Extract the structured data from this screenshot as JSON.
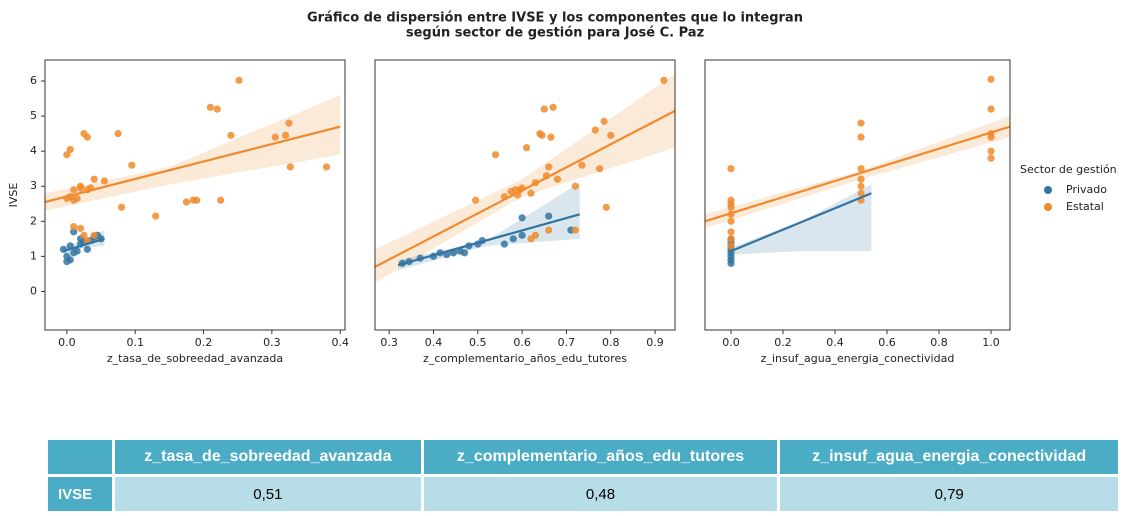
{
  "title": [
    "Gráfico de dispersión entre IVSE y los componentes que lo integran",
    "según sector de gestión para José C. Paz"
  ],
  "legend_title": "Sector de gestión",
  "chart_data": [
    {
      "type": "scatter",
      "x_label": "z_tasa_de_sobreedad_avanzada",
      "y_label": "IVSE",
      "xlim": [
        -0.032,
        0.407
      ],
      "xticks": [
        {
          "value": 0,
          "label": "0.0"
        },
        0.1,
        0.2,
        0.3,
        0.4
      ],
      "ylim": [
        -1.1,
        6.6
      ],
      "yticks": [
        0,
        1,
        2,
        3,
        4,
        5,
        6
      ],
      "series": [
        {
          "name": "Privado",
          "color": "#3274a1",
          "x": [
            -0.005,
            0.0,
            0.0,
            0.005,
            0.005,
            0.01,
            0.01,
            0.015,
            0.02,
            0.02,
            0.025,
            0.03,
            0.035,
            0.04,
            0.045,
            0.05
          ],
          "values": [
            1.2,
            1.0,
            0.85,
            0.9,
            1.3,
            1.1,
            1.7,
            1.15,
            1.35,
            1.5,
            1.4,
            1.2,
            1.45,
            1.55,
            1.6,
            1.5
          ],
          "fit": {
            "x": [
              -0.005,
              0.055
            ],
            "y": [
              1.15,
              1.5
            ]
          },
          "ci": {
            "x": [
              -0.005,
              0.025,
              0.055
            ],
            "lower": [
              1.05,
              1.25,
              1.3
            ],
            "upper": [
              1.25,
              1.45,
              1.75
            ]
          }
        },
        {
          "name": "Estatal",
          "color": "#f08a2c",
          "x": [
            0.0,
            0.0,
            0.005,
            0.005,
            0.01,
            0.01,
            0.015,
            0.02,
            0.02,
            0.025,
            0.03,
            0.03,
            0.035,
            0.04,
            0.01,
            0.02,
            0.025,
            0.03,
            0.04,
            0.055,
            0.075,
            0.08,
            0.095,
            0.13,
            0.175,
            0.185,
            0.19,
            0.21,
            0.22,
            0.225,
            0.24,
            0.252,
            0.305,
            0.32,
            0.325,
            0.327,
            0.38
          ],
          "values": [
            2.65,
            3.9,
            4.05,
            2.7,
            2.9,
            2.6,
            2.65,
            3.0,
            2.95,
            4.5,
            4.4,
            2.9,
            2.95,
            3.2,
            1.85,
            1.8,
            1.6,
            1.45,
            1.6,
            3.15,
            4.5,
            2.4,
            3.6,
            2.15,
            2.55,
            2.6,
            2.6,
            5.25,
            5.2,
            2.6,
            4.45,
            6.02,
            4.4,
            4.45,
            4.8,
            3.55,
            3.55
          ],
          "fit": {
            "x": [
              -0.032,
              0.4
            ],
            "y": [
              2.55,
              4.7
            ]
          },
          "ci": {
            "x": [
              -0.032,
              0.15,
              0.4
            ],
            "lower": [
              2.3,
              3.05,
              3.9
            ],
            "upper": [
              2.8,
              3.55,
              5.6
            ]
          }
        }
      ]
    },
    {
      "type": "scatter",
      "x_label": "z_complementario_años_edu_tutores",
      "xlim": [
        0.268,
        0.945
      ],
      "xticks": [
        0.3,
        0.4,
        0.5,
        0.6,
        0.7,
        0.8,
        0.9
      ],
      "ylim": [
        -1.1,
        6.6
      ],
      "series": [
        {
          "name": "Privado",
          "color": "#3274a1",
          "x": [
            0.33,
            0.345,
            0.37,
            0.4,
            0.415,
            0.43,
            0.445,
            0.46,
            0.47,
            0.48,
            0.5,
            0.51,
            0.56,
            0.58,
            0.6,
            0.66,
            0.71,
            0.6
          ],
          "values": [
            0.8,
            0.85,
            0.95,
            1.0,
            1.1,
            1.05,
            1.1,
            1.15,
            1.1,
            1.3,
            1.35,
            1.45,
            1.35,
            1.5,
            1.6,
            2.15,
            1.75,
            2.1
          ],
          "fit": {
            "x": [
              0.32,
              0.73
            ],
            "y": [
              0.75,
              2.2
            ]
          },
          "ci": {
            "x": [
              0.32,
              0.52,
              0.73
            ],
            "lower": [
              0.6,
              1.3,
              1.5
            ],
            "upper": [
              0.9,
              1.45,
              3.1
            ]
          }
        },
        {
          "name": "Estatal",
          "color": "#f08a2c",
          "x": [
            0.495,
            0.54,
            0.56,
            0.575,
            0.585,
            0.59,
            0.595,
            0.6,
            0.61,
            0.62,
            0.63,
            0.64,
            0.645,
            0.65,
            0.655,
            0.66,
            0.665,
            0.67,
            0.68,
            0.72,
            0.735,
            0.765,
            0.775,
            0.785,
            0.79,
            0.8,
            0.92,
            0.62,
            0.63,
            0.66,
            0.72
          ],
          "values": [
            2.6,
            3.9,
            2.7,
            2.85,
            2.9,
            2.75,
            2.9,
            2.95,
            4.1,
            2.8,
            3.1,
            4.5,
            4.45,
            5.2,
            3.3,
            3.55,
            4.4,
            5.25,
            3.2,
            3.0,
            3.6,
            4.6,
            3.5,
            4.85,
            2.4,
            4.45,
            6.02,
            1.5,
            1.6,
            1.75,
            1.75
          ],
          "fit": {
            "x": [
              0.268,
              0.945
            ],
            "y": [
              0.7,
              5.15
            ]
          },
          "ci": {
            "x": [
              0.268,
              0.6,
              0.945
            ],
            "lower": [
              0.25,
              2.7,
              4.1
            ],
            "upper": [
              1.2,
              3.2,
              6.2
            ]
          }
        }
      ]
    },
    {
      "type": "scatter",
      "x_label": "z_insuf_agua_energia_conectividad",
      "xlim": [
        -0.1,
        1.073
      ],
      "xticks": [
        {
          "value": 0,
          "label": "0.0"
        },
        0.2,
        0.4,
        0.6,
        0.8,
        {
          "value": 1,
          "label": "1.0"
        }
      ],
      "ylim": [
        -1.1,
        6.6
      ],
      "series": [
        {
          "name": "Privado",
          "color": "#3274a1",
          "x": [
            0,
            0,
            0,
            0,
            0,
            0,
            0,
            0
          ],
          "values": [
            0.8,
            0.9,
            1.0,
            1.1,
            1.2,
            1.3,
            1.4,
            1.5
          ],
          "fit": {
            "x": [
              0,
              0.54
            ],
            "y": [
              1.15,
              2.8
            ]
          },
          "ci": {
            "x": [
              0,
              0.27,
              0.54
            ],
            "lower": [
              1.05,
              1.15,
              1.15
            ],
            "upper": [
              1.25,
              2.0,
              3.05
            ]
          }
        },
        {
          "name": "Estatal",
          "color": "#f08a2c",
          "x": [
            0,
            0,
            0,
            0,
            0,
            0,
            0,
            0,
            0,
            0.5,
            0.5,
            0.5,
            0.5,
            0.5,
            0.5,
            0.5,
            1,
            1,
            1,
            1,
            1,
            1
          ],
          "values": [
            1.5,
            1.7,
            2.0,
            2.2,
            2.4,
            2.5,
            2.6,
            3.5,
            1.3,
            2.6,
            2.8,
            3.0,
            3.2,
            3.5,
            4.4,
            4.8,
            3.8,
            4.0,
            4.4,
            4.5,
            5.2,
            6.05
          ],
          "fit": {
            "x": [
              -0.1,
              1.073
            ],
            "y": [
              2.0,
              4.7
            ]
          },
          "ci": {
            "x": [
              -0.1,
              0.5,
              1.073
            ],
            "lower": [
              1.8,
              3.2,
              4.4
            ],
            "upper": [
              2.2,
              3.45,
              5.0
            ]
          }
        }
      ]
    }
  ],
  "table": {
    "header": [
      "z_tasa_de_sobreedad_avanzada",
      "z_complementario_años_edu_tutores",
      "z_insuf_agua_energia_conectividad"
    ],
    "rows": [
      [
        "IVSE",
        "0,51",
        "0,48",
        "0,79"
      ]
    ]
  }
}
